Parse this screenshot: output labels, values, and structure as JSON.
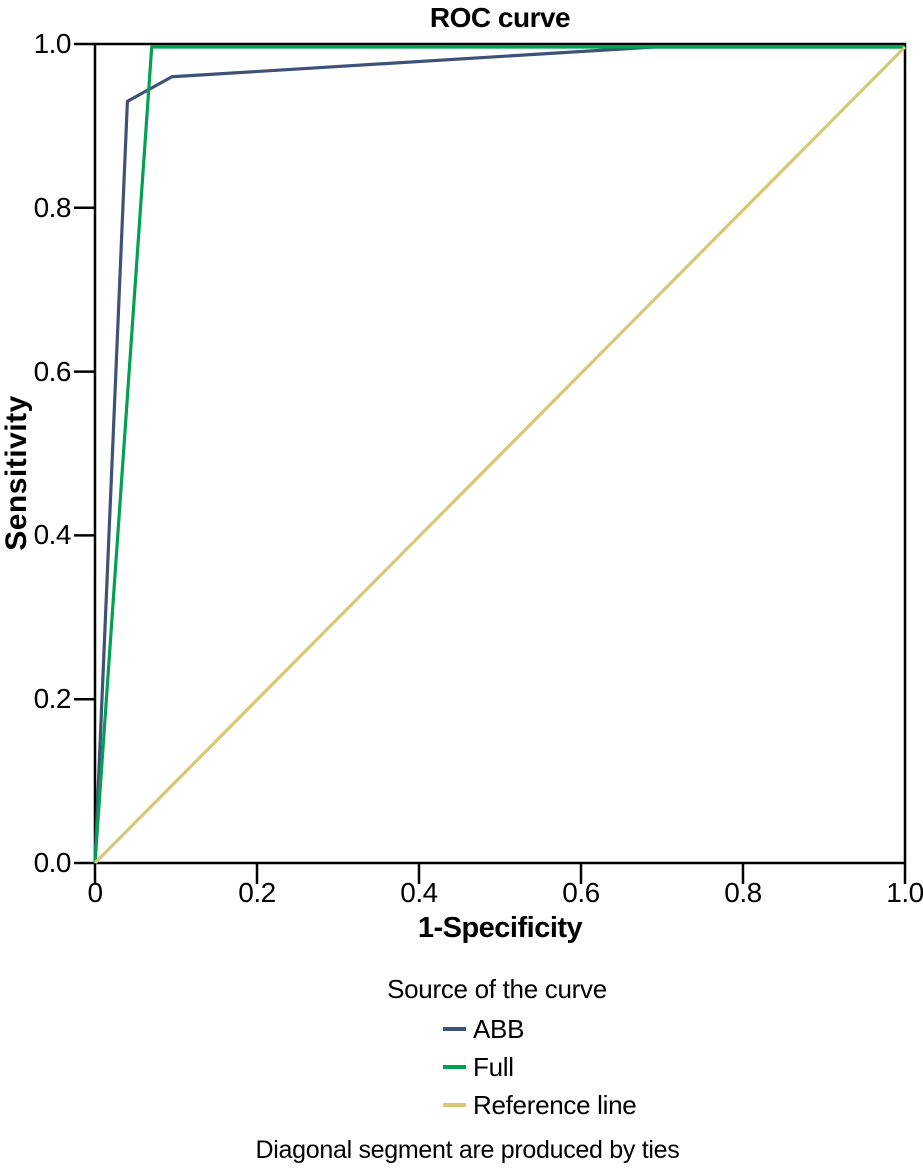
{
  "chart_data": {
    "type": "line",
    "title": "ROC curve",
    "xlabel": "1-Specificity",
    "ylabel": "Sensitivity",
    "xlim": [
      0,
      1
    ],
    "ylim": [
      0,
      1
    ],
    "grid": false,
    "xticks": [
      0,
      0.2,
      0.4,
      0.6,
      0.8,
      1.0
    ],
    "yticks": [
      0,
      0.2,
      0.4,
      0.6,
      0.8,
      1.0
    ],
    "xtick_labels": [
      "0",
      "0.2",
      "0.4",
      "0.6",
      "0.8",
      "1.0"
    ],
    "ytick_labels": [
      "0.0",
      "0.2",
      "0.4",
      "0.6",
      "0.8",
      "1.0"
    ],
    "legend_title": "Source of the curve",
    "legend_position": "bottom-center",
    "axis_color": "#000000",
    "series": [
      {
        "name": "ABB",
        "color": "#3e5278",
        "points": [
          [
            0,
            0
          ],
          [
            0.04,
            0.93
          ],
          [
            0.095,
            0.96
          ],
          [
            0.69,
            1.0
          ],
          [
            1.0,
            1.0
          ]
        ]
      },
      {
        "name": "Full",
        "color": "#00a150",
        "points": [
          [
            0,
            0
          ],
          [
            0.07,
            1.0
          ],
          [
            1.0,
            1.0
          ]
        ]
      },
      {
        "name": "Reference line",
        "color": "#d6c874",
        "points": [
          [
            0,
            0
          ],
          [
            1.0,
            1.0
          ]
        ]
      }
    ],
    "footnote": "Diagonal segment are produced by ties"
  }
}
